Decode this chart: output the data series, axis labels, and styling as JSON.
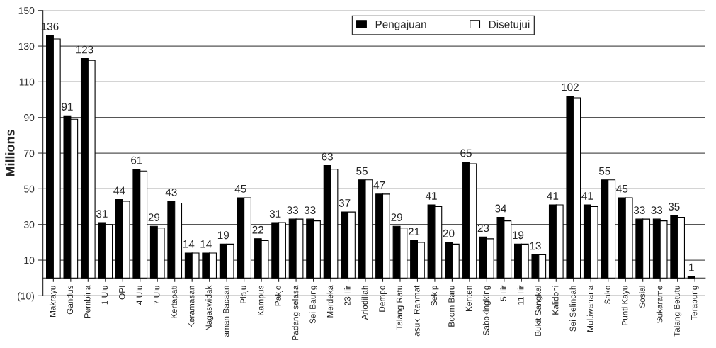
{
  "chart_data": {
    "type": "bar",
    "ylabel": "Millions",
    "categories": [
      "Makrayu",
      "Gandus",
      "Pembina",
      "1 Ulu",
      "OPI",
      "4 Ulu",
      "7 Ulu",
      "Kertapati",
      "Keramasan",
      "Nagaswidak",
      "aman Bacaan",
      "Plaju",
      "Kampus",
      "Pakjo",
      "Padang selasa",
      "Sei Baung",
      "Merdeka",
      "23 Ilir",
      "Ariodillah",
      "Dempo",
      "Talang Ratu",
      "asuki Rahmat",
      "Sekip",
      "Boom Baru",
      "Kenten",
      "Sabokingking",
      "5 Ilir",
      "11 Ilir",
      "Bukit Sangkal",
      "Kalidoni",
      "Sei Selincah",
      "Multiwahana",
      "Sako",
      "Punti Kayu",
      "Sosial",
      "Sukarame",
      "Talang Betutu",
      "Terapung"
    ],
    "series": [
      {
        "name": "Pengajuan",
        "color": "#000000",
        "values": [
          136,
          91,
          123,
          31,
          44,
          61,
          29,
          43,
          14,
          14,
          19,
          45,
          22,
          31,
          33,
          33,
          63,
          37,
          55,
          47,
          29,
          21,
          41,
          20,
          65,
          23,
          34,
          19,
          13,
          41,
          102,
          41,
          55,
          45,
          33,
          33,
          35,
          1
        ],
        "value_labels": [
          "136",
          "91",
          "123",
          "31",
          "44",
          "61",
          "29",
          "43",
          "14",
          "14",
          "19",
          "45",
          "22",
          "31",
          "33",
          "33",
          "63",
          "37",
          "55",
          "47",
          "29",
          "21",
          "41",
          "20",
          "65",
          "23",
          "34",
          "19",
          "13",
          "41",
          "102",
          "41",
          "55",
          "45",
          "33",
          "33",
          "35",
          "1"
        ]
      },
      {
        "name": "Disetujui",
        "color": "#ffffff",
        "values": [
          134,
          89,
          122,
          30,
          43,
          60,
          28,
          42,
          14,
          14,
          19,
          45,
          21,
          31,
          33,
          32,
          61,
          37,
          55,
          47,
          28,
          20,
          40,
          19,
          64,
          22,
          32,
          19,
          13,
          41,
          101,
          40,
          55,
          45,
          33,
          32,
          34,
          null
        ]
      }
    ],
    "ylim": [
      -10,
      150
    ],
    "yticks": [
      {
        "value": -10,
        "label": "(10)"
      },
      10,
      30,
      50,
      70,
      90,
      110,
      130,
      150
    ],
    "grid": "y",
    "legend": "top right"
  }
}
